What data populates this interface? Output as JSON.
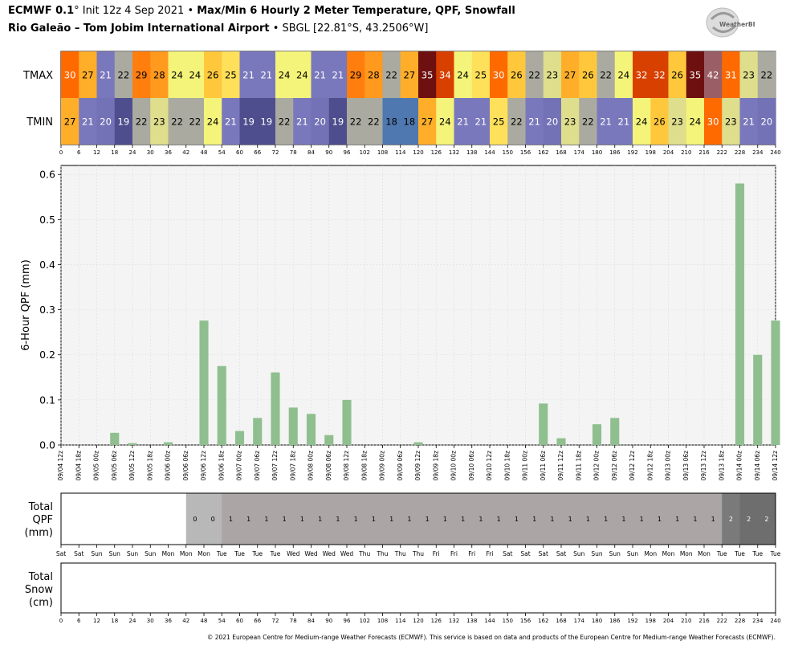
{
  "header": {
    "model": "ECMWF 0.1",
    "degree": "°",
    "init": " Init 12z 4 Sep 2021",
    "bullet": " • ",
    "product": "Max/Min 6 Hourly 2 Meter Temperature,  QPF,  Snowfall",
    "station": "Rio Galeão – Tom Jobim International Airport",
    "bullet2": " • ",
    "station_info": "SBGL [22.81°S, 43.2506°W]"
  },
  "logo": {
    "text": "WeatherBELL",
    "icon": "weatherbell-swirl-logo"
  },
  "copyright": "© 2021 European Centre for Medium-range Weather Forecasts (ECMWF). This service is based on data and products of the European Centre for Medium-range Weather Forecasts (ECMWF).",
  "chart_data": [
    {
      "type": "heatmap",
      "rows": [
        "TMAX",
        "TMIN"
      ],
      "x": [
        0,
        6,
        12,
        18,
        24,
        30,
        36,
        42,
        48,
        54,
        60,
        66,
        72,
        78,
        84,
        90,
        96,
        102,
        108,
        114,
        120,
        126,
        132,
        138,
        144,
        150,
        156,
        162,
        168,
        174,
        180,
        186,
        192,
        198,
        204,
        210,
        216,
        222,
        228,
        234,
        240
      ],
      "tmax": [
        30,
        27,
        21,
        22,
        29,
        28,
        24,
        24,
        26,
        25,
        21,
        21,
        24,
        24,
        21,
        21,
        29,
        28,
        22,
        27,
        35,
        34,
        24,
        25,
        30,
        26,
        22,
        23,
        27,
        26,
        22,
        24,
        32,
        32,
        26,
        35,
        42,
        31,
        23,
        22
      ],
      "tmin": [
        27,
        21,
        20,
        19,
        22,
        23,
        22,
        22,
        24,
        21,
        19,
        19,
        22,
        21,
        20,
        19,
        22,
        22,
        18,
        18,
        27,
        24,
        21,
        21,
        25,
        22,
        21,
        20,
        23,
        22,
        21,
        21,
        24,
        26,
        23,
        24,
        30,
        23,
        21,
        20
      ]
    },
    {
      "type": "bar",
      "ylabel": "6-Hour QPF (mm)",
      "ylim": [
        0,
        0.62
      ],
      "yticks": [
        "0.0",
        "0.1",
        "0.2",
        "0.3",
        "0.4",
        "0.5",
        "0.6"
      ],
      "categories": [
        "09/04 12z",
        "09/04 18z",
        "09/05 00z",
        "09/05 06z",
        "09/05 12z",
        "09/05 18z",
        "09/06 00z",
        "09/06 06z",
        "09/06 12z",
        "09/06 18z",
        "09/07 00z",
        "09/07 06z",
        "09/07 12z",
        "09/07 18z",
        "09/08 00z",
        "09/08 06z",
        "09/08 12z",
        "09/08 18z",
        "09/09 00z",
        "09/09 06z",
        "09/09 12z",
        "09/09 18z",
        "09/10 00z",
        "09/10 06z",
        "09/10 12z",
        "09/10 18z",
        "09/11 00z",
        "09/11 06z",
        "09/11 12z",
        "09/11 18z",
        "09/12 00z",
        "09/12 06z",
        "09/12 12z",
        "09/12 18z",
        "09/13 00z",
        "09/13 06z",
        "09/13 12z",
        "09/13 18z",
        "09/14 00z",
        "09/14 06z",
        "09/14 12z"
      ],
      "values": [
        0,
        0,
        0,
        0.027,
        0.004,
        0,
        0.006,
        0,
        0.276,
        0.175,
        0.031,
        0.06,
        0.161,
        0.083,
        0.069,
        0.022,
        0.1,
        0,
        0,
        0,
        0.006,
        0,
        0,
        0,
        0,
        0,
        0,
        0.092,
        0.015,
        0,
        0.046,
        0.06,
        0,
        0,
        0,
        0,
        0,
        0,
        0.58,
        0.2,
        0.276
      ],
      "color": "#8fbf8f"
    },
    {
      "type": "table",
      "ylabel_lines": [
        "Total",
        "QPF",
        "(mm)"
      ],
      "values": [
        "",
        "",
        "",
        "",
        "",
        "",
        "",
        "0",
        "0",
        "1",
        "1",
        "1",
        "1",
        "1",
        "1",
        "1",
        "1",
        "1",
        "1",
        "1",
        "1",
        "1",
        "1",
        "1",
        "1",
        "1",
        "1",
        "1",
        "1",
        "1",
        "1",
        "1",
        "1",
        "1",
        "1",
        "1",
        "1",
        "2",
        "2",
        "2"
      ],
      "days": [
        "Sat",
        "Sat",
        "Sun",
        "Sun",
        "Sun",
        "Sun",
        "Mon",
        "Mon",
        "Mon",
        "Tue",
        "Tue",
        "Tue",
        "Tue",
        "Wed",
        "Wed",
        "Wed",
        "Wed",
        "Thu",
        "Thu",
        "Thu",
        "Thu",
        "Fri",
        "Fri",
        "Fri",
        "Fri",
        "Sat",
        "Sat",
        "Sat",
        "Sat",
        "Sun",
        "Sun",
        "Sun",
        "Sun",
        "Mon",
        "Mon",
        "Mon",
        "Mon",
        "Tue",
        "Tue",
        "Tue",
        "Tue"
      ]
    },
    {
      "type": "table",
      "ylabel_lines": [
        "Total",
        "Snow",
        "(cm)"
      ],
      "x": [
        0,
        6,
        12,
        18,
        24,
        30,
        36,
        42,
        48,
        54,
        60,
        66,
        72,
        78,
        84,
        90,
        96,
        102,
        108,
        114,
        120,
        126,
        132,
        138,
        144,
        150,
        156,
        162,
        168,
        174,
        180,
        186,
        192,
        198,
        204,
        210,
        216,
        222,
        228,
        234,
        240
      ]
    }
  ]
}
